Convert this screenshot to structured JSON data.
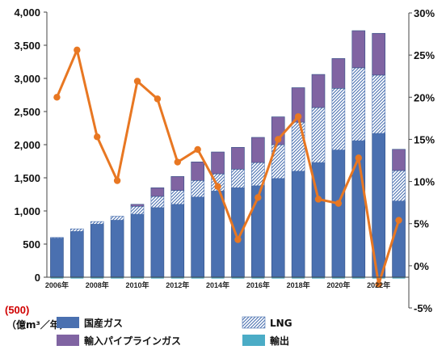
{
  "chart_data": {
    "type": "bar",
    "stacked": true,
    "title": "",
    "xlabel": "",
    "ylabel": "",
    "unit_label": "（億m³／年）",
    "negative_tick_label": "(500)",
    "x": [
      2006,
      2007,
      2008,
      2009,
      2010,
      2011,
      2012,
      2013,
      2014,
      2015,
      2016,
      2017,
      2018,
      2019,
      2020,
      2021,
      2022,
      2023
    ],
    "xtick_labels": [
      "2006年",
      "2008年",
      "2010年",
      "2012年",
      "2014年",
      "2016年",
      "2018年",
      "2020年",
      "2022年"
    ],
    "ylim": [
      -500,
      4000
    ],
    "y_ticks": [
      0,
      500,
      1000,
      1500,
      2000,
      2500,
      3000,
      3500,
      4000
    ],
    "y_tick_labels": [
      "0",
      "500",
      "1,000",
      "1,500",
      "2,000",
      "2,500",
      "3,000",
      "3,500",
      "4,000"
    ],
    "y2lim": [
      -0.05,
      0.3
    ],
    "y2_ticks": [
      -0.05,
      0,
      0.05,
      0.1,
      0.15,
      0.2,
      0.25,
      0.3
    ],
    "y2_tick_labels": [
      "-5%",
      "0%",
      "5%",
      "10%",
      "15%",
      "20%",
      "25%",
      "30%"
    ],
    "grid": false,
    "legend_position": "bottom",
    "series": [
      {
        "name": "国産ガス",
        "values": [
          590,
          690,
          800,
          860,
          950,
          1050,
          1100,
          1210,
          1300,
          1350,
          1380,
          1490,
          1600,
          1730,
          1920,
          2060,
          2170,
          1150
        ],
        "color": "#4a70b0",
        "pattern": "solid"
      },
      {
        "name": "LNG",
        "values": [
          10,
          40,
          40,
          60,
          120,
          170,
          210,
          250,
          260,
          280,
          350,
          510,
          740,
          830,
          930,
          1100,
          880,
          460
        ],
        "color": "#4a70b0",
        "pattern": "hatch"
      },
      {
        "name": "輸入パイプラインガス",
        "values": [
          0,
          0,
          0,
          0,
          30,
          130,
          210,
          280,
          330,
          330,
          380,
          420,
          520,
          500,
          450,
          560,
          630,
          320
        ],
        "color": "#8064a2",
        "pattern": "solid"
      },
      {
        "name": "輸出",
        "values": [
          -20,
          -20,
          -20,
          -20,
          -20,
          -20,
          -20,
          -20,
          -20,
          -20,
          -20,
          -20,
          -20,
          -20,
          -20,
          -20,
          -20,
          -20
        ],
        "color": "#4bacc6",
        "pattern": "solid"
      }
    ],
    "line_series": {
      "name": "",
      "axis": "right",
      "color": "#e87722",
      "values": [
        0.2,
        0.256,
        0.153,
        0.101,
        0.219,
        0.198,
        0.123,
        0.138,
        0.094,
        0.031,
        0.081,
        0.15,
        0.177,
        0.079,
        0.074,
        0.128,
        -0.022,
        0.054
      ]
    }
  }
}
